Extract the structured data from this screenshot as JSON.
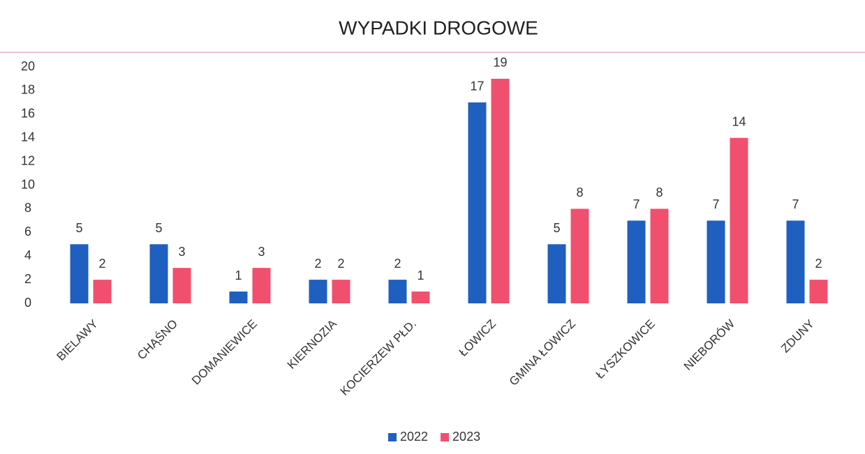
{
  "chart_data": {
    "type": "bar",
    "title": "WYPADKI DROGOWE",
    "categories": [
      "BIELAWY",
      "CHĄŚNO",
      "DOMANIEWICE",
      "KIERNOZIA",
      "KOCIERZEW PŁD.",
      "ŁOWICZ",
      "GMINA ŁOWICZ",
      "ŁYSZKOWICE",
      "NIEBORÓW",
      "ZDUNY"
    ],
    "series": [
      {
        "name": "2022",
        "color": "#1f5fbf",
        "values": [
          5,
          5,
          1,
          2,
          2,
          17,
          5,
          7,
          7,
          7
        ]
      },
      {
        "name": "2023",
        "color": "#f0506e",
        "values": [
          2,
          3,
          3,
          2,
          1,
          19,
          8,
          8,
          14,
          2
        ]
      }
    ],
    "ylim": [
      0,
      20
    ],
    "yticks": [
      0,
      2,
      4,
      6,
      8,
      10,
      12,
      14,
      16,
      18,
      20
    ],
    "grid": false,
    "legend": "bottom"
  }
}
